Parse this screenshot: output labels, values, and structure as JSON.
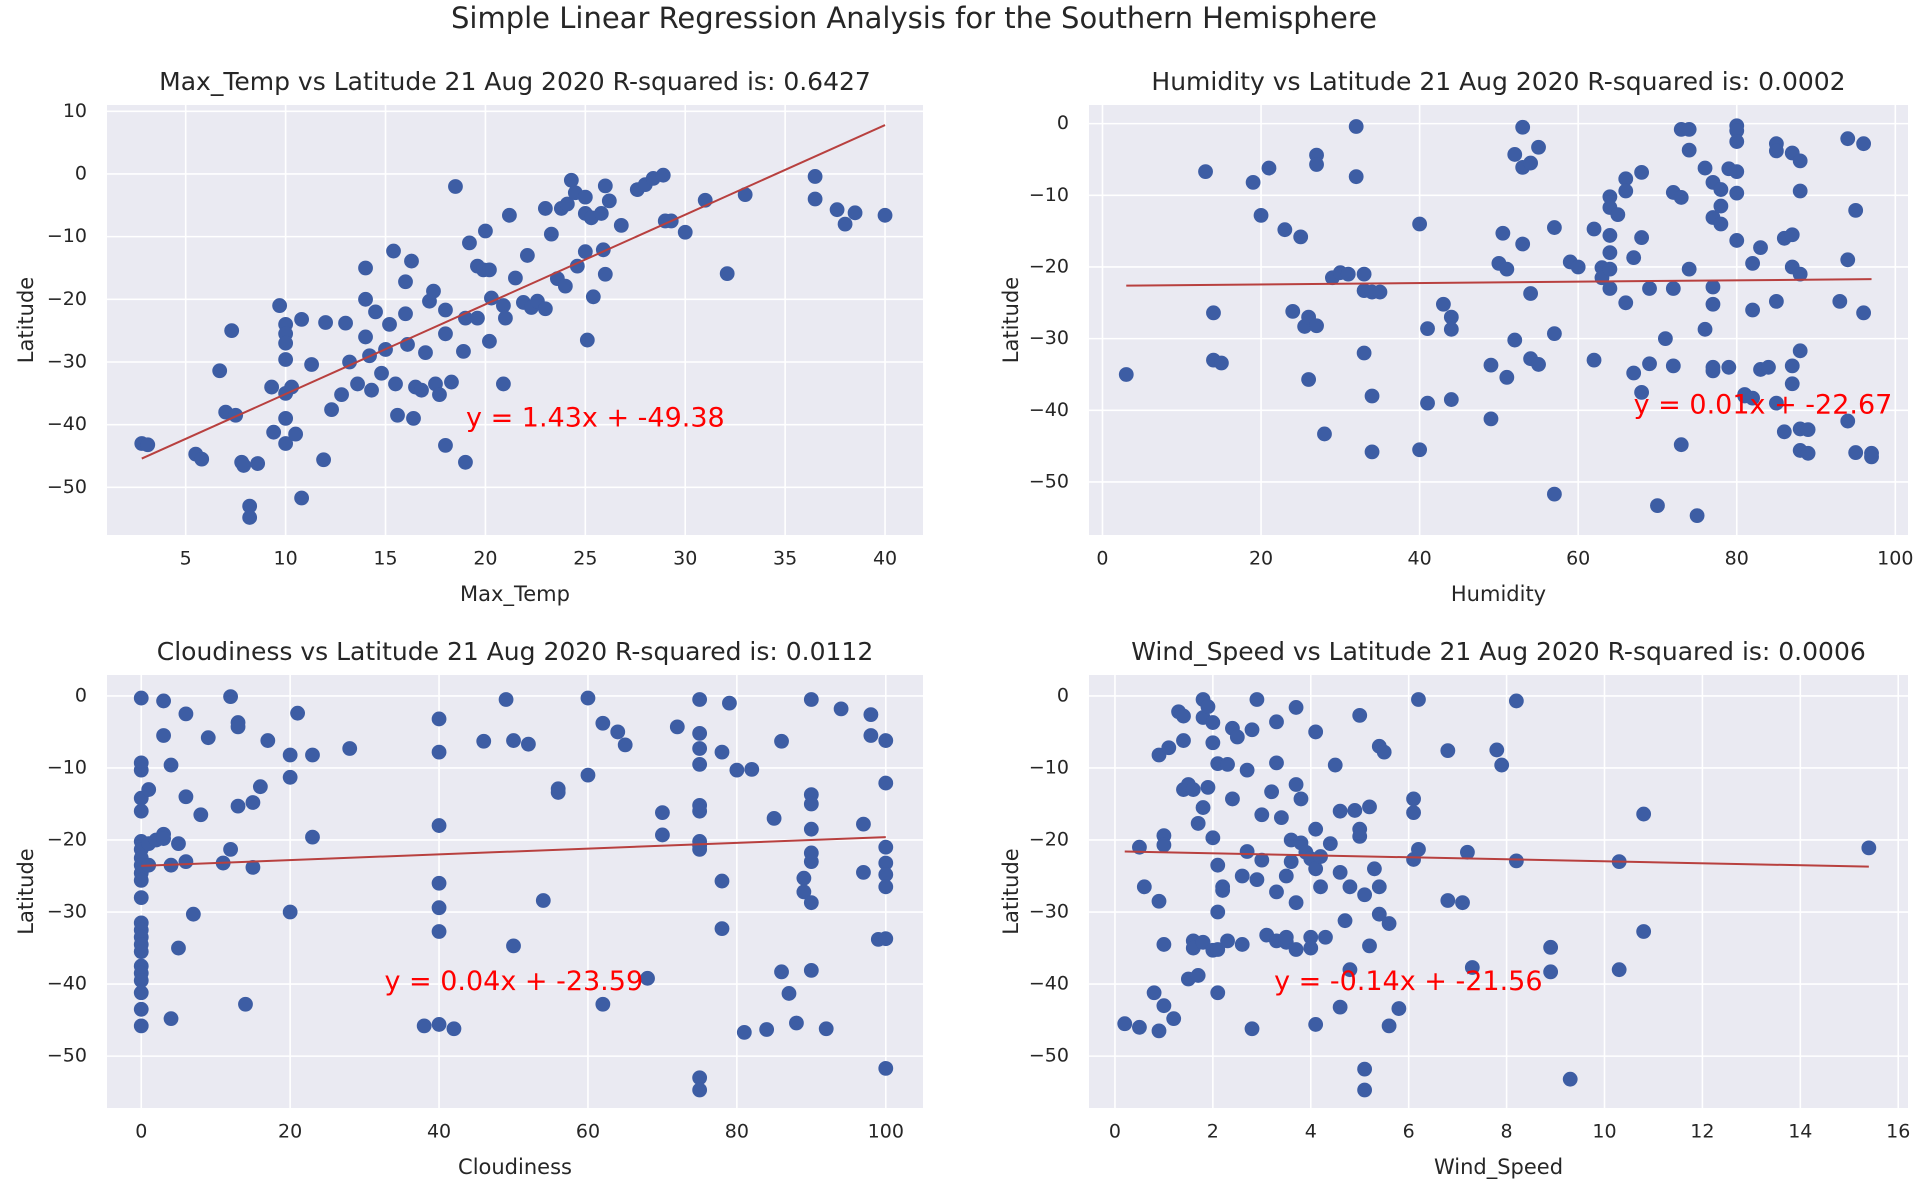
{
  "title": "Simple Linear Regression Analysis for the Southern Hemisphere",
  "chart_data": [
    {
      "type": "scatter",
      "title": "Max_Temp vs Latitude 21 Aug 2020  R-squared is: 0.6427",
      "xlabel": "Max_Temp",
      "ylabel": "Latitude",
      "color": "#3d5da4",
      "grid": true,
      "xlim": [
        1.06,
        41.9
      ],
      "ylim": [
        -57.6,
        11.0
      ],
      "xticks": [
        5,
        10,
        15,
        20,
        25,
        30,
        35,
        40
      ],
      "yticks": [
        {
          "value": -50,
          "label": "−50"
        },
        {
          "value": -40,
          "label": "−40"
        },
        {
          "value": -30,
          "label": "−30"
        },
        {
          "value": -20,
          "label": "−20"
        },
        {
          "value": -10,
          "label": "−10"
        },
        0,
        10
      ],
      "x": [
        2.8,
        3.1,
        5.5,
        5.8,
        6.7,
        7.0,
        7.3,
        7.5,
        7.8,
        7.9,
        8.2,
        8.2,
        8.6,
        9.3,
        9.4,
        9.7,
        10,
        10,
        10,
        10,
        10,
        10,
        10,
        10.3,
        10.5,
        10.8,
        10.8,
        11.3,
        11.9,
        12,
        12.3,
        12.8,
        13,
        13.2,
        13.6,
        14,
        14,
        14,
        14.2,
        14.3,
        14.5,
        14.8,
        15,
        15.2,
        15.4,
        15.5,
        15.6,
        16,
        16,
        16.1,
        16.3,
        16.4,
        16.5,
        16.8,
        17,
        17.2,
        17.4,
        17.5,
        17.7,
        18,
        18,
        18,
        18.3,
        18.5,
        18.9,
        19,
        19,
        19.2,
        19.6,
        19.6,
        19.9,
        20,
        20.2,
        20.2,
        20.3,
        20.9,
        20.9,
        21,
        21.2,
        21.5,
        21.9,
        22.1,
        22.3,
        22.6,
        23,
        23,
        23.3,
        23.6,
        23.8,
        24,
        24.1,
        24.3,
        24.5,
        24.6,
        25,
        25,
        25,
        25.1,
        25.3,
        25.4,
        25.8,
        25.9,
        26,
        26,
        26.2,
        26.8,
        27.6,
        28,
        28.4,
        28.9,
        29.0,
        29.3,
        30,
        31,
        32.1,
        33,
        36.5,
        36.5,
        37.6,
        38,
        38.5,
        40
      ],
      "values": [
        -43,
        -43.2,
        -44.7,
        -45.5,
        -31.4,
        -38,
        -25,
        -38.5,
        -46,
        -46.5,
        -53,
        -54.8,
        -46.2,
        -34,
        -41.2,
        -21,
        -24,
        -25.5,
        -27,
        -29.6,
        -35,
        -39,
        -43,
        -34,
        -41.5,
        -51.7,
        -23.2,
        -30.4,
        -45.6,
        -23.7,
        -37.6,
        -35.2,
        -23.8,
        -30,
        -33.5,
        -20,
        -15,
        -26,
        -29,
        -34.5,
        -22,
        -31.8,
        -28,
        -24,
        -12.3,
        -33.5,
        -38.5,
        -17.2,
        -22.3,
        -27.2,
        -13.9,
        -39,
        -34,
        -34.5,
        -28.5,
        -20.3,
        -18.7,
        -33.5,
        -35.2,
        -43.3,
        -25.5,
        -21.7,
        -33.2,
        -2,
        -28.3,
        -46,
        -23,
        -11,
        -23,
        -14.7,
        -15.3,
        -9.1,
        -15.3,
        -26.7,
        -19.8,
        -21,
        -33.5,
        -23,
        -6.6,
        -16.6,
        -20.5,
        -13,
        -21.3,
        -20.3,
        -21.5,
        -5.5,
        -9.6,
        -16.7,
        -5.5,
        -17.9,
        -4.8,
        -1,
        -3,
        -14.7,
        -6.3,
        -3.7,
        -12.4,
        -26.5,
        -7,
        -19.6,
        -6.3,
        -12.1,
        -16,
        -1.9,
        -4.3,
        -8.2,
        -2.5,
        -1.7,
        -0.7,
        -0.2,
        -7.5,
        -7.5,
        -9.3,
        -4.2,
        -15.9,
        -3.3,
        -0.4,
        -4,
        -5.7,
        -8,
        -6.2,
        -6.6
      ],
      "fit": {
        "color": "#b8403f",
        "x": [
          2.8,
          40
        ],
        "y": [
          -45.4,
          7.8
        ]
      },
      "annotation": "y = 1.43x + -49.38",
      "annotation_color": "#ff0000"
    },
    {
      "type": "scatter",
      "title": "Humidity vs Latitude 21 Aug 2020  R-squared is: 0.0002",
      "xlabel": "Humidity",
      "ylabel": "Latitude",
      "color": "#3d5da4",
      "grid": true,
      "xlim": [
        -1.7,
        101.6
      ],
      "ylim": [
        -57.4,
        2.6
      ],
      "xticks": [
        0,
        20,
        40,
        60,
        80,
        100
      ],
      "yticks": [
        {
          "value": -50,
          "label": "−50"
        },
        {
          "value": -40,
          "label": "−40"
        },
        {
          "value": -30,
          "label": "−30"
        },
        {
          "value": -20,
          "label": "−20"
        },
        {
          "value": -10,
          "label": "−10"
        },
        0
      ],
      "x": [
        3,
        13,
        14,
        14,
        15,
        19,
        20,
        21,
        23,
        24,
        25,
        25.5,
        26,
        26,
        27,
        27,
        27,
        28,
        29,
        30,
        31,
        32,
        32,
        33,
        33,
        33,
        34,
        34,
        34,
        35,
        40,
        40,
        41,
        41,
        43,
        44,
        44,
        44,
        49,
        49,
        50,
        50.5,
        51,
        51,
        52,
        52,
        53,
        53,
        53,
        54,
        54,
        54,
        55,
        55,
        57,
        57,
        57,
        59,
        60,
        62,
        62,
        63,
        63,
        64,
        64,
        64,
        64,
        64,
        64,
        65,
        66,
        66,
        66,
        67,
        67,
        68,
        68,
        68,
        69,
        69,
        70,
        71,
        72,
        72,
        72,
        73,
        73,
        73,
        74,
        74,
        74,
        75,
        76,
        76,
        77,
        77,
        77,
        77,
        77,
        77,
        78,
        78,
        78,
        79,
        79,
        80,
        80,
        80,
        80,
        80,
        80,
        81,
        81,
        82,
        82,
        82,
        83,
        83,
        84,
        85,
        85,
        85,
        85,
        86,
        86,
        87,
        87,
        87,
        87,
        87,
        88,
        88,
        88,
        88,
        88,
        88,
        89,
        89,
        93,
        94,
        94,
        94,
        95,
        95,
        96,
        96,
        97,
        97
      ],
      "values": [
        -35,
        -6.7,
        -26.4,
        -33,
        -33.4,
        -8.2,
        -12.8,
        -6.2,
        -14.8,
        -26.2,
        -15.8,
        -28.3,
        -27,
        -35.7,
        -4.4,
        -5.7,
        -28.2,
        -43.3,
        -21.5,
        -20.8,
        -21,
        -0.4,
        -7.4,
        -21,
        -23.3,
        -32,
        -38,
        -23.5,
        -45.8,
        -23.5,
        -14,
        -45.5,
        -28.6,
        -39,
        -25.2,
        -27,
        -28.7,
        -38.5,
        -41.2,
        -33.7,
        -19.5,
        -15.3,
        -20.3,
        -35.4,
        -30.2,
        -4.3,
        -6.1,
        -0.5,
        -16.8,
        -5.5,
        -23.7,
        -32.8,
        -3.3,
        -33.6,
        -14.5,
        -29.3,
        -51.7,
        -19.3,
        -20,
        -14.7,
        -33,
        -20.1,
        -21.5,
        -10.2,
        -11.7,
        -15.6,
        -18,
        -20.3,
        -23,
        -12.7,
        -7.7,
        -9.4,
        -25,
        -18.7,
        -34.8,
        -15.9,
        -37.5,
        -6.8,
        -23,
        -33.5,
        -53.3,
        -30,
        -9.6,
        -23,
        -33.8,
        -10.3,
        -44.8,
        -0.8,
        -20.3,
        -0.8,
        -3.7,
        -54.7,
        -6.2,
        -28.7,
        -8.2,
        -13.1,
        -22.8,
        -25.2,
        -34,
        -34.5,
        -11.5,
        -14,
        -9.2,
        -6.3,
        -34,
        -0.3,
        -1,
        -2.5,
        -6.7,
        -9.7,
        -16.3,
        -37.8,
        -38,
        -19.5,
        -26,
        -38.3,
        -17.3,
        -34.3,
        -34,
        -24.8,
        -2.8,
        -3.8,
        -39,
        -43,
        -16,
        -4.1,
        -15.5,
        -20,
        -33.8,
        -36.3,
        -5.2,
        -9.4,
        -21,
        -31.7,
        -42.6,
        -45.6,
        -42.7,
        -46,
        -24.8,
        -41.5,
        -19,
        -2.1,
        -12.1,
        -45.9,
        -2.8,
        -26.4,
        -46,
        -46.5
      ],
      "fit": {
        "color": "#b8403f",
        "x": [
          3,
          97
        ],
        "y": [
          -22.6,
          -21.7
        ]
      },
      "annotation": "y = 0.01x + -22.67",
      "annotation_color": "#ff0000"
    },
    {
      "type": "scatter",
      "title": "Cloudiness vs Latitude 21 Aug 2020  R-squared is: 0.0112",
      "xlabel": "Cloudiness",
      "ylabel": "Latitude",
      "color": "#3d5da4",
      "grid": true,
      "xlim": [
        -4.6,
        105
      ],
      "ylim": [
        -57.2,
        2.9
      ],
      "xticks": [
        0,
        20,
        40,
        60,
        80,
        100
      ],
      "yticks": [
        {
          "value": -50,
          "label": "−50"
        },
        {
          "value": -40,
          "label": "−40"
        },
        {
          "value": -30,
          "label": "−30"
        },
        {
          "value": -20,
          "label": "−20"
        },
        {
          "value": -10,
          "label": "−10"
        },
        0
      ],
      "x": [
        0,
        0,
        0,
        0,
        0,
        0,
        0,
        0,
        0,
        0,
        0,
        0,
        0,
        0,
        0,
        0,
        0,
        0,
        0,
        0,
        0,
        0,
        0,
        1,
        1,
        1,
        2,
        3,
        3,
        3,
        3,
        4,
        4,
        4,
        5,
        5,
        6,
        6,
        6,
        7,
        8,
        9,
        11,
        12,
        12,
        13,
        13,
        13,
        14,
        15,
        15,
        16,
        17,
        20,
        20,
        20,
        21,
        23,
        23,
        28,
        38,
        40,
        40,
        40,
        40,
        40,
        40,
        40,
        42,
        46,
        49,
        50,
        50,
        52,
        54,
        56,
        56,
        60,
        60,
        62,
        62,
        64,
        65,
        68,
        70,
        70,
        72,
        75,
        75,
        75,
        75,
        75,
        75,
        75,
        75,
        75,
        75,
        75,
        78,
        78,
        78,
        79,
        80,
        81,
        82,
        84,
        85,
        86,
        86,
        87,
        88,
        89,
        89,
        90,
        90,
        90,
        90,
        90,
        90,
        90,
        90,
        92,
        94,
        97,
        97,
        98,
        98,
        99,
        100,
        100,
        100,
        100,
        100,
        100,
        100,
        100
      ],
      "values": [
        -0.3,
        -9.3,
        -10.3,
        -14.2,
        -16,
        -20.2,
        -21.3,
        -22.5,
        -23.5,
        -24.6,
        -25.6,
        -28,
        -31.5,
        -32.5,
        -33.5,
        -34.5,
        -35.5,
        -37.5,
        -38.5,
        -39.5,
        -41.2,
        -43.5,
        -45.8,
        -13,
        -23.5,
        -20.5,
        -20,
        -0.7,
        -5.5,
        -19.2,
        -19.8,
        -9.6,
        -23.5,
        -44.8,
        -20.5,
        -35,
        -2.5,
        -14,
        -23,
        -30.3,
        -16.5,
        -5.8,
        -23.2,
        -0.1,
        -21.3,
        -3.7,
        -4.3,
        -15.3,
        -42.8,
        -14.8,
        -23.8,
        -12.6,
        -6.2,
        -8.2,
        -11.3,
        -30,
        -2.4,
        -8.2,
        -19.6,
        -7.3,
        -45.8,
        -3.2,
        -7.8,
        -18,
        -26,
        -29.4,
        -32.7,
        -45.6,
        -46.2,
        -6.3,
        -0.5,
        -6.2,
        -34.7,
        -6.7,
        -28.4,
        -12.9,
        -13.4,
        -0.3,
        -11,
        -3.8,
        -42.8,
        -5,
        -6.8,
        -39.2,
        -16.2,
        -19.3,
        -4.3,
        -0.5,
        -5.2,
        -7.3,
        -9.5,
        -15.2,
        -16,
        -20.2,
        -20.8,
        -21.3,
        -53,
        -54.7,
        -7.8,
        -25.7,
        -32.3,
        -1,
        -10.3,
        -46.7,
        -10.2,
        -46.3,
        -17,
        -6.3,
        -38.3,
        -41.3,
        -45.4,
        -25.3,
        -27.2,
        -0.5,
        -13.7,
        -15,
        -18.5,
        -21.8,
        -23,
        -28.7,
        -38.1,
        -46.2,
        -1.8,
        -17.8,
        -24.5,
        -2.6,
        -5.5,
        -33.8,
        -6.2,
        -12.1,
        -21,
        -23.2,
        -24.8,
        -26.5,
        -33.7,
        -51.7
      ],
      "fit": {
        "color": "#b8403f",
        "x": [
          0,
          100
        ],
        "y": [
          -23.59,
          -19.6
        ]
      },
      "annotation": "y = 0.04x + -23.59",
      "annotation_color": "#ff0000"
    },
    {
      "type": "scatter",
      "title": "Wind_Speed vs Latitude 21 Aug 2020  R-squared is: 0.0006",
      "xlabel": "Wind_Speed",
      "ylabel": "Latitude",
      "color": "#3d5da4",
      "grid": true,
      "xlim": [
        -0.53,
        16.2
      ],
      "ylim": [
        -57.2,
        2.9
      ],
      "xticks": [
        0,
        2,
        4,
        6,
        8,
        10,
        12,
        14,
        16
      ],
      "yticks": [
        {
          "value": -50,
          "label": "−50"
        },
        {
          "value": -40,
          "label": "−40"
        },
        {
          "value": -30,
          "label": "−30"
        },
        {
          "value": -20,
          "label": "−20"
        },
        {
          "value": -10,
          "label": "−10"
        },
        0
      ],
      "x": [
        0.2,
        0.5,
        0.5,
        0.6,
        0.8,
        0.9,
        0.9,
        0.9,
        1,
        1,
        1,
        1,
        1.1,
        1.2,
        1.3,
        1.4,
        1.4,
        1.4,
        1.5,
        1.5,
        1.6,
        1.6,
        1.6,
        1.7,
        1.7,
        1.8,
        1.8,
        1.8,
        1.8,
        1.9,
        1.9,
        2,
        2,
        2,
        2,
        2.1,
        2.1,
        2.1,
        2.1,
        2.1,
        2.2,
        2.2,
        2.3,
        2.3,
        2.4,
        2.4,
        2.5,
        2.6,
        2.6,
        2.7,
        2.7,
        2.8,
        2.8,
        2.9,
        2.9,
        3,
        3,
        3.1,
        3.2,
        3.3,
        3.3,
        3.3,
        3.3,
        3.4,
        3.5,
        3.5,
        3.5,
        3.6,
        3.6,
        3.7,
        3.7,
        3.7,
        3.7,
        3.8,
        3.8,
        3.9,
        4,
        4,
        4,
        4.1,
        4.1,
        4.1,
        4.1,
        4.2,
        4.2,
        4.3,
        4.4,
        4.5,
        4.6,
        4.6,
        4.6,
        4.7,
        4.8,
        4.8,
        4.9,
        5,
        5,
        5,
        5.1,
        5.1,
        5.1,
        5.2,
        5.2,
        5.3,
        5.4,
        5.4,
        5.4,
        5.5,
        5.6,
        5.6,
        5.8,
        6.1,
        6.2,
        6.2,
        6.1,
        6.1,
        6.8,
        6.8,
        7.1,
        7.2,
        7.3,
        7.8,
        7.9,
        8.2,
        8.2,
        8.9,
        8.9,
        9.3,
        10.3,
        10.3,
        10.8,
        10.8,
        15.4
      ],
      "values": [
        -45.5,
        -21,
        -46,
        -26.5,
        -41.2,
        -28.5,
        -8.2,
        -46.5,
        -43,
        -19.4,
        -34.5,
        -20.7,
        -7.2,
        -44.8,
        -2.2,
        -2.8,
        -6.2,
        -13,
        -12.3,
        -39.3,
        -34,
        -35,
        -13,
        -38.8,
        -17.7,
        -0.5,
        -3,
        -15.5,
        -34.2,
        -12.7,
        -1.5,
        -6.5,
        -3.7,
        -19.7,
        -35.3,
        -9.4,
        -23.5,
        -30,
        -41.2,
        -35.2,
        -26.5,
        -27,
        -9.5,
        -34,
        -4.5,
        -14.3,
        -5.7,
        -34.5,
        -25,
        -21.6,
        -10.3,
        -4.7,
        -46.2,
        -0.5,
        -25.5,
        -16.5,
        -22.8,
        -33.2,
        -13.3,
        -3.6,
        -9.3,
        -27.2,
        -34,
        -16.9,
        -25,
        -34.2,
        -33.5,
        -20,
        -23,
        -1.6,
        -12.3,
        -28.7,
        -35.2,
        -14.3,
        -20.4,
        -21.7,
        -22.6,
        -33.5,
        -35,
        -5,
        -18.5,
        -24,
        -45.6,
        -22.3,
        -26.5,
        -33.5,
        -20.5,
        -9.6,
        -16,
        -24.5,
        -43.2,
        -31.2,
        -26.5,
        -38,
        -15.9,
        -18.5,
        -19.5,
        -2.7,
        -27.6,
        -51.8,
        -54.7,
        -15.4,
        -34.7,
        -24,
        -7,
        -30.3,
        -26.5,
        -7.8,
        -31.6,
        -45.8,
        -43.4,
        -22.7,
        -21.3,
        -0.5,
        -14.3,
        -16.2,
        -7.6,
        -28.4,
        -28.7,
        -21.7,
        -37.7,
        -7.5,
        -9.6,
        -0.7,
        -22.9,
        -34.9,
        -38.3,
        -53.2,
        -23,
        -38,
        -16.4,
        -32.7,
        -21.1
      ],
      "fit": {
        "color": "#b8403f",
        "x": [
          0.2,
          15.4
        ],
        "y": [
          -21.6,
          -23.7
        ]
      },
      "annotation": "y = -0.14x + -21.56",
      "annotation_color": "#ff0000"
    }
  ]
}
